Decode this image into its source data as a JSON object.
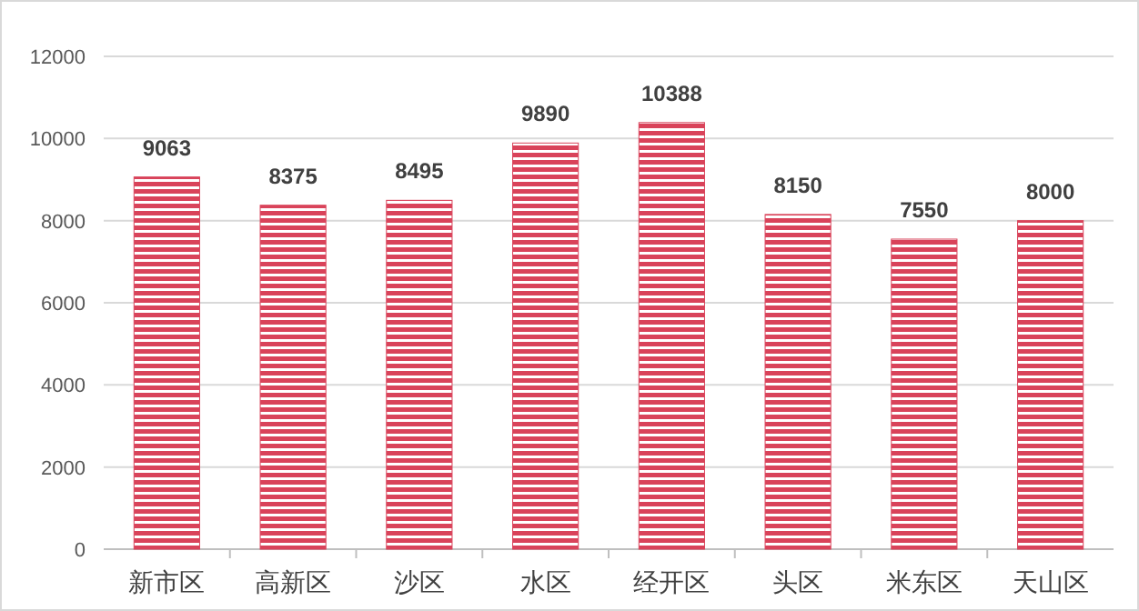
{
  "chart_data": {
    "type": "bar",
    "categories": [
      "新市区",
      "高新区",
      "沙区",
      "水区",
      "经开区",
      "头区",
      "米东区",
      "天山区"
    ],
    "values": [
      9063,
      8375,
      8495,
      9890,
      10388,
      8150,
      7550,
      8000
    ],
    "color": "#d9435a",
    "ylim": [
      0,
      12000
    ],
    "yticks": [
      0,
      2000,
      4000,
      6000,
      8000,
      10000,
      12000
    ],
    "grid": "y",
    "data_labels": true
  }
}
